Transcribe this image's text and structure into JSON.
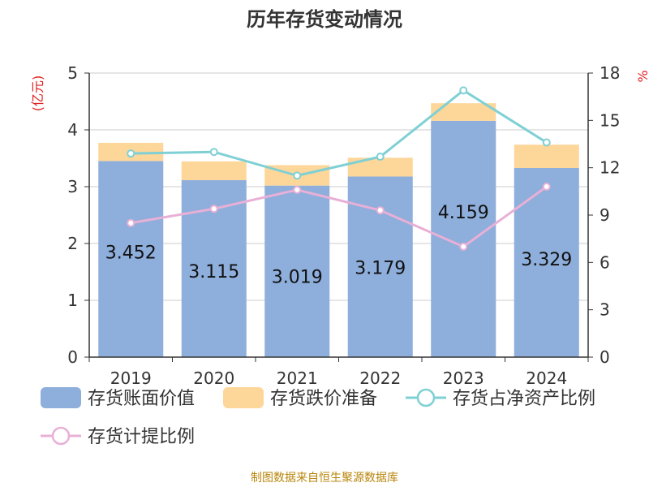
{
  "chart_data": {
    "type": "bar",
    "title": "历年存货变动情况",
    "categories": [
      "2019",
      "2020",
      "2021",
      "2022",
      "2023",
      "2024"
    ],
    "y_left": {
      "label": "(亿元)",
      "ticks": [
        "0",
        "1",
        "2",
        "3",
        "4",
        "5"
      ],
      "range": [
        0,
        5
      ]
    },
    "y_right": {
      "label": "%",
      "ticks": [
        "0",
        "3",
        "6",
        "9",
        "12",
        "15",
        "18"
      ],
      "range": [
        0,
        18
      ]
    },
    "series": [
      {
        "name": "存货账面价值",
        "kind": "bar",
        "stack": "inventory",
        "axis": "left",
        "color": "#8eaedb",
        "values": [
          3.452,
          3.115,
          3.019,
          3.179,
          4.159,
          3.329
        ],
        "data_labels": [
          "3.452",
          "3.115",
          "3.019",
          "3.179",
          "4.159",
          "3.329"
        ]
      },
      {
        "name": "存货跌价准备",
        "kind": "bar",
        "stack": "inventory",
        "axis": "left",
        "color": "#fdd699",
        "values": [
          0.32,
          0.33,
          0.36,
          0.33,
          0.31,
          0.41
        ]
      },
      {
        "name": "存货占净资产比例",
        "kind": "line",
        "axis": "right",
        "color": "#7fd0d4",
        "values": [
          12.9,
          13.0,
          11.5,
          12.7,
          16.9,
          13.6
        ]
      },
      {
        "name": "存货计提比例",
        "kind": "line",
        "axis": "right",
        "color": "#e8b0d6",
        "values": [
          8.5,
          9.4,
          10.6,
          9.3,
          7.0,
          10.8
        ]
      }
    ],
    "grid": true,
    "legend_position": "bottom"
  },
  "footer": "制图数据来自恒生聚源数据库"
}
